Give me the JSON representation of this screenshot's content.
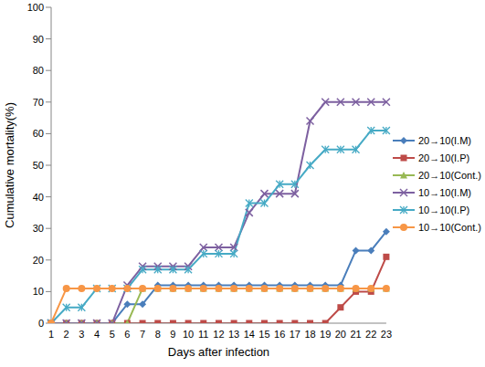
{
  "chart_data": {
    "type": "line",
    "x_label": "Days after infection",
    "y_label": "Cumulative mortality(%)",
    "categories": [
      1,
      2,
      3,
      4,
      5,
      6,
      7,
      8,
      9,
      10,
      11,
      12,
      13,
      14,
      15,
      16,
      17,
      18,
      19,
      20,
      21,
      22,
      23
    ],
    "ylim": [
      0,
      100
    ],
    "yticks": [
      0,
      10,
      20,
      30,
      40,
      50,
      60,
      70,
      80,
      90,
      100
    ],
    "grid": false,
    "legend": "right",
    "series": [
      {
        "name": "20→10(I.M)",
        "color": "#4a7ebb",
        "marker": "diamond",
        "values": [
          0,
          0,
          0,
          0,
          0,
          6,
          6,
          12,
          12,
          12,
          12,
          12,
          12,
          12,
          12,
          12,
          12,
          12,
          12,
          12,
          23,
          23,
          29
        ]
      },
      {
        "name": "20→10(I.P)",
        "color": "#be4b48",
        "marker": "square",
        "values": [
          0,
          0,
          0,
          0,
          0,
          0,
          0,
          0,
          0,
          0,
          0,
          0,
          0,
          0,
          0,
          0,
          0,
          0,
          0,
          5,
          10,
          10,
          21
        ]
      },
      {
        "name": "20→10(Cont.)",
        "color": "#98b954",
        "marker": "triangle",
        "values": [
          0,
          0,
          0,
          0,
          0,
          0,
          11,
          11,
          11,
          11,
          11,
          11,
          11,
          11,
          11,
          11,
          11,
          11,
          11,
          11,
          11,
          11,
          11
        ]
      },
      {
        "name": "10→10(I.M)",
        "color": "#7d60a0",
        "marker": "x",
        "values": [
          0,
          0,
          0,
          0,
          0,
          12,
          18,
          18,
          18,
          18,
          24,
          24,
          24,
          35,
          41,
          41,
          41,
          64,
          70,
          70,
          70,
          70,
          70
        ]
      },
      {
        "name": "10→10(I.P)",
        "color": "#46aac5",
        "marker": "star",
        "values": [
          0,
          5,
          5,
          11,
          11,
          11,
          17,
          17,
          17,
          17,
          22,
          22,
          22,
          38,
          38,
          44,
          44,
          50,
          55,
          55,
          55,
          61,
          61
        ]
      },
      {
        "name": "10→10(Cont.)",
        "color": "#f79646",
        "marker": "circle",
        "values": [
          0,
          11,
          11,
          11,
          11,
          11,
          11,
          11,
          11,
          11,
          11,
          11,
          11,
          11,
          11,
          11,
          11,
          11,
          11,
          11,
          11,
          11,
          11
        ]
      }
    ]
  }
}
